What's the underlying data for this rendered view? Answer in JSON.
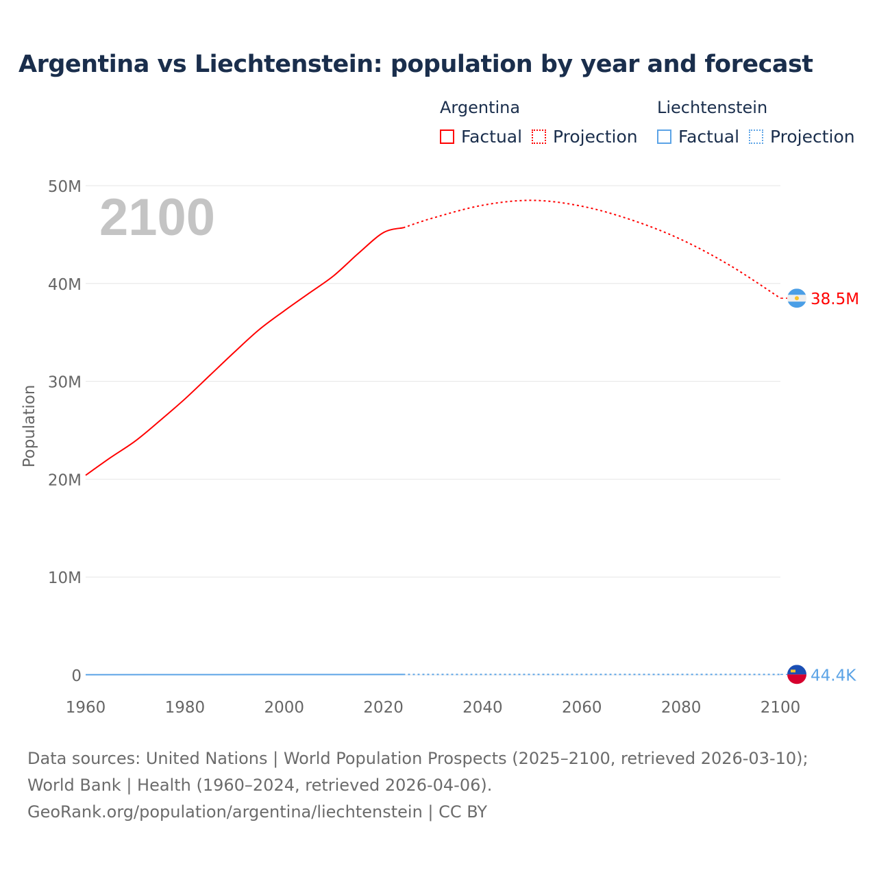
{
  "title": "Argentina vs Liechtenstein: population by year and forecast",
  "legend": {
    "groups": [
      {
        "name": "Argentina",
        "color": "#ff0000",
        "items": [
          "Factual",
          "Projection"
        ]
      },
      {
        "name": "Liechtenstein",
        "color": "#5ba3e6",
        "items": [
          "Factual",
          "Projection"
        ]
      }
    ]
  },
  "year_overlay": "2100",
  "footer": {
    "sources": "Data sources: United Nations | World Population Prospects (2025–2100, retrieved 2026-03-10); World Bank | Health (1960–2024, retrieved 2026-04-06).",
    "link": "GeoRank.org/population/argentina/liechtenstein | CC BY"
  },
  "chart_data": {
    "type": "line",
    "title": "Argentina vs Liechtenstein: population by year and forecast",
    "xlabel": "",
    "ylabel": "Population",
    "xlim": [
      1960,
      2100
    ],
    "ylim": [
      0,
      50
    ],
    "x_ticks": [
      "1960",
      "1980",
      "2000",
      "2020",
      "2040",
      "2060",
      "2080",
      "2100"
    ],
    "y_ticks": [
      "0",
      "10M",
      "20M",
      "30M",
      "40M",
      "50M"
    ],
    "grid": true,
    "legend_placement": "top-right",
    "series": [
      {
        "name": "Argentina",
        "color": "#ff0000",
        "end_label": "38.5M",
        "factual": [
          [
            1960,
            20.4
          ],
          [
            1965,
            22.2
          ],
          [
            1970,
            23.9
          ],
          [
            1975,
            26.0
          ],
          [
            1980,
            28.2
          ],
          [
            1985,
            30.6
          ],
          [
            1990,
            33.0
          ],
          [
            1995,
            35.3
          ],
          [
            2000,
            37.2
          ],
          [
            2005,
            39.0
          ],
          [
            2010,
            40.8
          ],
          [
            2015,
            43.1
          ],
          [
            2020,
            45.2
          ],
          [
            2024,
            45.7
          ]
        ],
        "projection": [
          [
            2024,
            45.7
          ],
          [
            2030,
            46.7
          ],
          [
            2040,
            48.0
          ],
          [
            2050,
            48.5
          ],
          [
            2060,
            47.9
          ],
          [
            2070,
            46.5
          ],
          [
            2080,
            44.5
          ],
          [
            2090,
            41.8
          ],
          [
            2100,
            38.5
          ]
        ]
      },
      {
        "name": "Liechtenstein",
        "color": "#5ba3e6",
        "end_label": "44.4K",
        "factual": [
          [
            1960,
            0.0165
          ],
          [
            1980,
            0.0258
          ],
          [
            2000,
            0.033
          ],
          [
            2024,
            0.04
          ]
        ],
        "projection": [
          [
            2024,
            0.04
          ],
          [
            2050,
            0.0435
          ],
          [
            2100,
            0.0444
          ]
        ]
      }
    ]
  }
}
